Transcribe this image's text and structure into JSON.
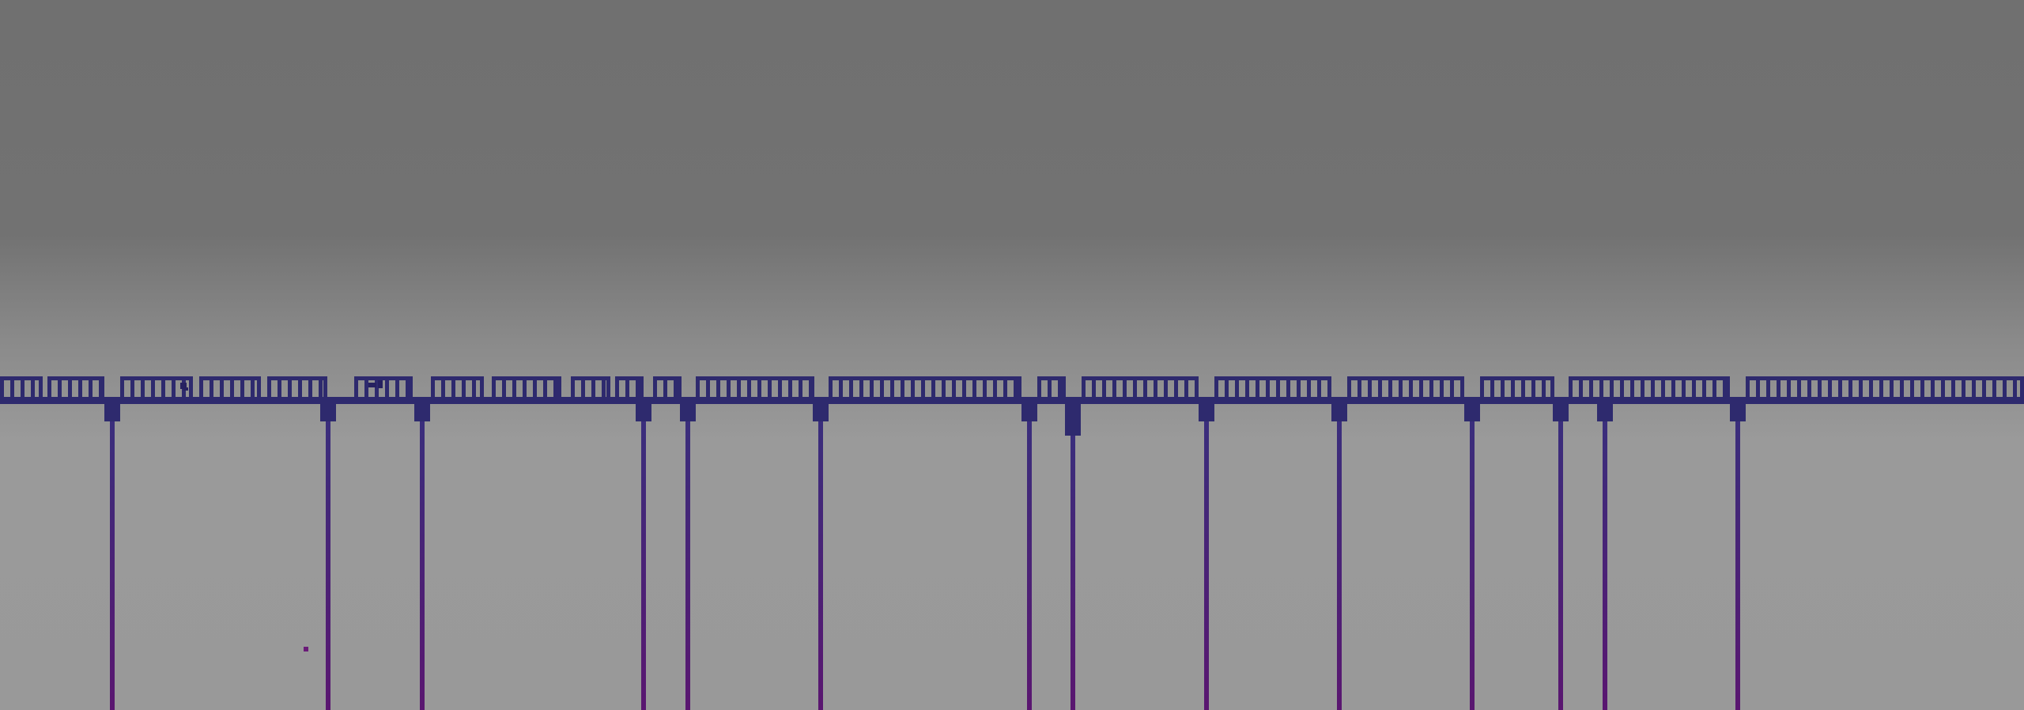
{
  "scene": {
    "title": "",
    "colors": {
      "sky_top": "#707070",
      "sky_bottom": "#999999",
      "structure": "#2e2a6e",
      "structure_dark": "#262160",
      "pillar_top": "#3a2e7c",
      "pillar_bottom": "#5a1670",
      "particle": "#6a1a78"
    },
    "icons": {
      "bridge": "bridge-deck",
      "pillar": "support-pillar",
      "particle": "small-square-particle"
    }
  }
}
